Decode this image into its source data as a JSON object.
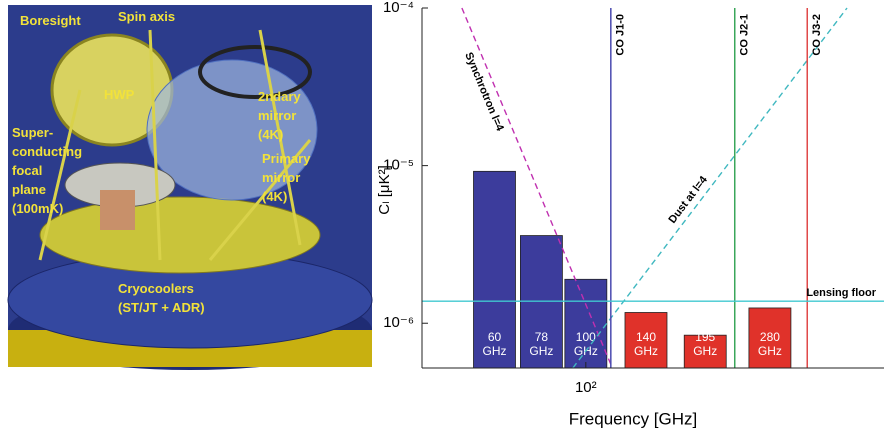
{
  "figure": {
    "labels": [
      [
        "Boresight"
      ],
      [
        "Spin axis"
      ],
      [
        "HWP"
      ],
      [
        "2ndary",
        "mirror",
        "(4K)"
      ],
      [
        "Super-",
        "conducting",
        "focal",
        "plane",
        "(100mK)"
      ],
      [
        "Primary",
        "mirror",
        "(4K)"
      ],
      [
        "Cryocoolers",
        "(ST/JT + ADR)"
      ]
    ]
  },
  "chart_data": {
    "type": "bar",
    "xlabel": "Frequency [GHz]",
    "ylabel": "Cₗ [μK²]",
    "xscale": "log",
    "yscale": "log",
    "xlim": [
      40,
      530
    ],
    "ylim": [
      5.2e-07,
      0.0001
    ],
    "xticks": [
      {
        "value": 100,
        "label": "10²"
      }
    ],
    "yticks": [
      {
        "value": 0.0001,
        "label": "10⁻⁴"
      },
      {
        "value": 1e-05,
        "label": "10⁻⁵"
      },
      {
        "value": 1e-06,
        "label": "10⁻⁶"
      }
    ],
    "grid": false,
    "x": [
      60,
      78,
      100,
      140,
      195,
      280
    ],
    "values": [
      9.2e-06,
      3.6e-06,
      1.9e-06,
      1.17e-06,
      8.4e-07,
      1.25e-06
    ],
    "colors": [
      "#3c3c9c",
      "#3c3c9c",
      "#3c3c9c",
      "#e0322a",
      "#e0322a",
      "#e0322a"
    ],
    "bar_labels": [
      [
        "60",
        "GHz"
      ],
      [
        "78",
        "GHz"
      ],
      [
        "100",
        "GHz"
      ],
      [
        "140",
        "GHz"
      ],
      [
        "195",
        "GHz"
      ],
      [
        "280",
        "GHz"
      ]
    ],
    "vlines": [
      {
        "label": "CO J1-0",
        "x": 115,
        "color": "#4a4ab0"
      },
      {
        "label": "CO J2-1",
        "x": 230,
        "color": "#3aa65a"
      },
      {
        "label": "CO J3-2",
        "x": 345,
        "color": "#e04848"
      }
    ],
    "hline": {
      "label": "Lensing floor",
      "y": 1.38e-06,
      "color": "#40c8d0"
    },
    "diagonals": [
      {
        "label": "Synchrotron l=4",
        "x": [
          50,
          116
        ],
        "y": [
          0.0001,
          5.2e-07
        ],
        "color": "#c030b0"
      },
      {
        "label": "Dust at l=4",
        "x": [
          93,
          431
        ],
        "y": [
          5.2e-07,
          0.0001
        ],
        "color": "#40b8c0"
      }
    ]
  }
}
